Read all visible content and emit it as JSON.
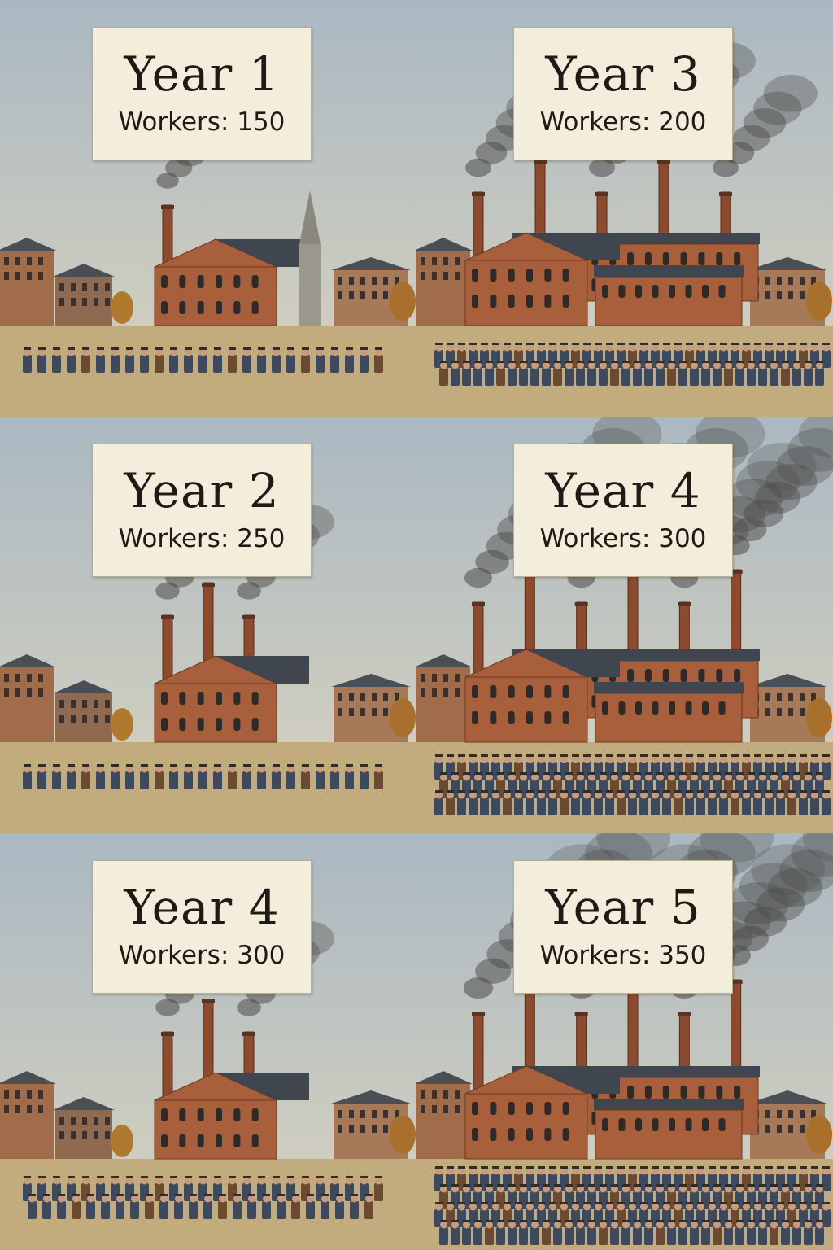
{
  "panels": [
    {
      "year": "Year 1",
      "workers": "Workers: 150",
      "scene": {
        "level": 1,
        "chimneys": 1,
        "worker_rows": 1,
        "smoke": "light"
      }
    },
    {
      "year": "Year 3",
      "workers": "Workers: 200",
      "scene": {
        "level": 3,
        "chimneys": 5,
        "worker_rows": 2,
        "smoke": "medium"
      }
    },
    {
      "year": "Year 2",
      "workers": "Workers: 250",
      "scene": {
        "level": 2,
        "chimneys": 3,
        "worker_rows": 1,
        "smoke": "medium"
      }
    },
    {
      "year": "Year 4",
      "workers": "Workers: 300",
      "scene": {
        "level": 4,
        "chimneys": 6,
        "worker_rows": 3,
        "smoke": "heavy"
      }
    },
    {
      "year": "Year 4",
      "workers": "Workers: 300",
      "scene": {
        "level": 2,
        "chimneys": 3,
        "worker_rows": 2,
        "smoke": "medium"
      }
    },
    {
      "year": "Year 5",
      "workers": "Workers: 350",
      "scene": {
        "level": 5,
        "chimneys": 6,
        "worker_rows": 4,
        "smoke": "heavy"
      }
    }
  ],
  "colors": {
    "sky_top": "#aab8c2",
    "sky_bottom": "#d9d3bf",
    "ground": "#c2ab7c",
    "brick": "#a85f3b",
    "brick_dark": "#8c4a2e",
    "roof": "#3f4650",
    "smoke": "#4a4a48",
    "worker_blue": "#3e4a5c",
    "worker_brown": "#6b4a32",
    "caption_bg": "#f3eddc"
  }
}
